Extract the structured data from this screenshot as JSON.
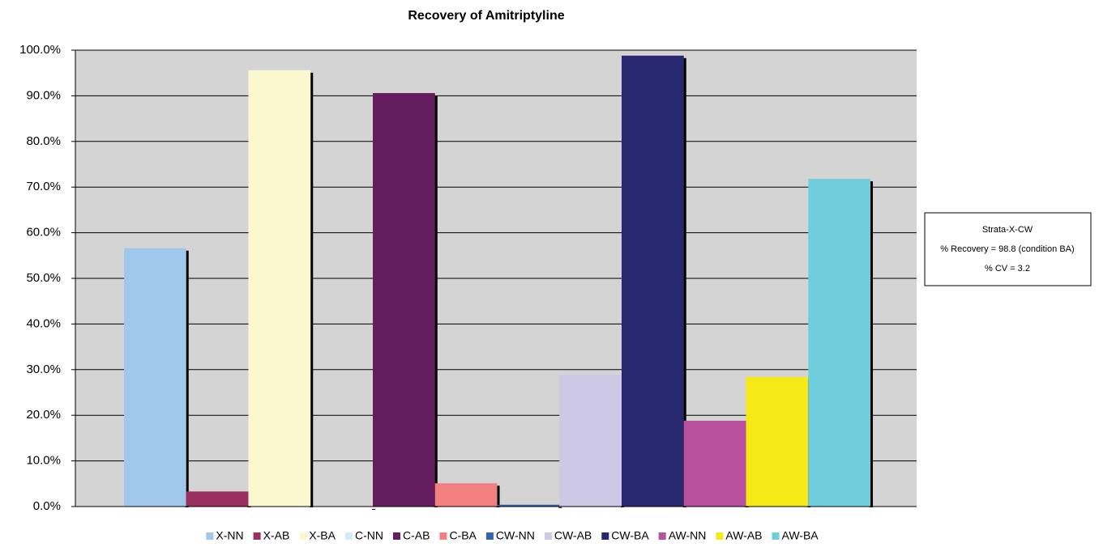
{
  "chart_data": {
    "type": "bar",
    "title": "Recovery of Amitriptyline",
    "categories": [
      null
    ],
    "series": [
      {
        "name": "X-NN",
        "color": "#a0c8ec",
        "values": [
          56.6
        ]
      },
      {
        "name": "X-AB",
        "color": "#9a3060",
        "values": [
          3.3
        ]
      },
      {
        "name": "X-BA",
        "color": "#fbf8d0",
        "values": [
          95.6
        ]
      },
      {
        "name": "C-NN",
        "color": "#d0ecf4",
        "values": [
          0
        ]
      },
      {
        "name": "C-AB",
        "color": "#641e60",
        "values": [
          90.6
        ]
      },
      {
        "name": "C-BA",
        "color": "#f28080",
        "values": [
          5.1
        ]
      },
      {
        "name": "CW-NN",
        "color": "#3366aa",
        "values": [
          0.4
        ]
      },
      {
        "name": "CW-AB",
        "color": "#ccc8e6",
        "values": [
          28.9
        ]
      },
      {
        "name": "CW-BA",
        "color": "#282870",
        "values": [
          98.8
        ]
      },
      {
        "name": "AW-NN",
        "color": "#b8509e",
        "values": [
          18.8
        ]
      },
      {
        "name": "AW-AB",
        "color": "#f5ea18",
        "values": [
          28.4
        ]
      },
      {
        "name": "AW-BA",
        "color": "#70cedc",
        "values": [
          71.8
        ]
      }
    ],
    "ylim": [
      0,
      100
    ],
    "yticks": [
      {
        "value": 0,
        "label": "0.0%"
      },
      {
        "value": 10,
        "label": "10.0%"
      },
      {
        "value": 20,
        "label": "20.0%"
      },
      {
        "value": 30,
        "label": "30.0%"
      },
      {
        "value": 40,
        "label": "40.0%"
      },
      {
        "value": 50,
        "label": "50.0%"
      },
      {
        "value": 60,
        "label": "60.0%"
      },
      {
        "value": 70,
        "label": "70.0%"
      },
      {
        "value": 80,
        "label": "80.0%"
      },
      {
        "value": 90,
        "label": "90.0%"
      },
      {
        "value": 100,
        "label": "100.0%"
      }
    ],
    "grid": true,
    "legend": "bottom",
    "annotation": [
      "Strata-X-CW",
      "% Recovery = 98.8 (condition BA)",
      "% CV = 3.2"
    ]
  }
}
